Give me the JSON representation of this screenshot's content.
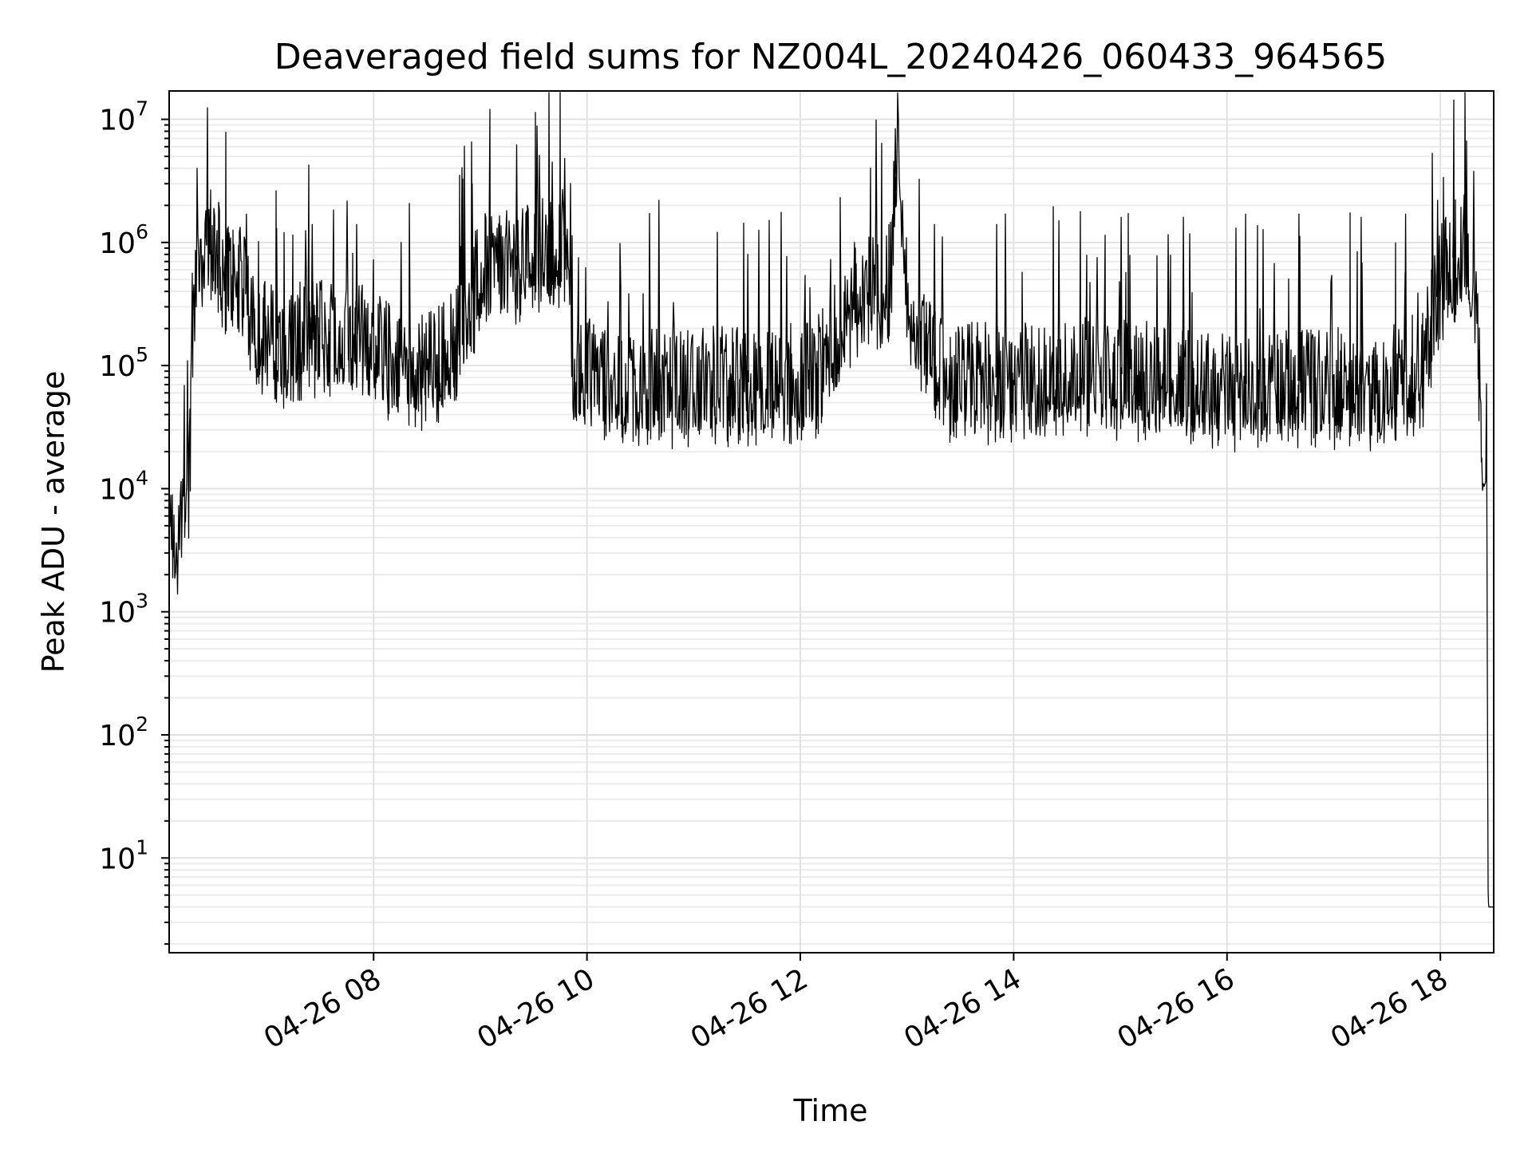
{
  "chart_data": {
    "type": "line",
    "title": "Deaveraged field sums for NZ004L_20240426_060433_964565",
    "xlabel": "Time",
    "ylabel": "Peak ADU - average",
    "yscale": "log",
    "xlim": [
      "2024-04-26 06:05",
      "2024-04-26 18:30"
    ],
    "ylim": [
      1.7,
      17000000
    ],
    "x_ticks": [
      "04-26 08",
      "04-26 10",
      "04-26 12",
      "04-26 14",
      "04-26 16",
      "04-26 18"
    ],
    "y_ticks": [
      {
        "base": "10",
        "exp": "1"
      },
      {
        "base": "10",
        "exp": "2"
      },
      {
        "base": "10",
        "exp": "3"
      },
      {
        "base": "10",
        "exp": "4"
      },
      {
        "base": "10",
        "exp": "5"
      },
      {
        "base": "10",
        "exp": "6"
      },
      {
        "base": "10",
        "exp": "7"
      }
    ],
    "grid": true,
    "series": [
      {
        "color": "#000000",
        "points": [
          [
            "2024-04-26 06:05",
            3500
          ],
          [
            "2024-04-26 06:07",
            6000
          ],
          [
            "2024-04-26 06:09",
            2000
          ],
          [
            "2024-04-26 06:12",
            8000
          ],
          [
            "2024-04-26 06:14",
            12000
          ],
          [
            "2024-04-26 06:16",
            9000
          ],
          [
            "2024-04-26 06:18",
            200000
          ],
          [
            "2024-04-26 06:20",
            500000
          ],
          [
            "2024-04-26 06:24",
            900000
          ],
          [
            "2024-04-26 06:30",
            1200000
          ],
          [
            "2024-04-26 06:36",
            600000
          ],
          [
            "2024-04-26 06:45",
            500000
          ],
          [
            "2024-04-26 06:55",
            200000
          ],
          [
            "2024-04-26 07:10",
            150000
          ],
          [
            "2024-04-26 07:30",
            200000
          ],
          [
            "2024-04-26 07:50",
            180000
          ],
          [
            "2024-04-26 08:10",
            120000
          ],
          [
            "2024-04-26 08:30",
            100000
          ],
          [
            "2024-04-26 08:45",
            150000
          ],
          [
            "2024-04-26 08:55",
            400000
          ],
          [
            "2024-04-26 09:05",
            800000
          ],
          [
            "2024-04-26 09:20",
            600000
          ],
          [
            "2024-04-26 09:30",
            1000000
          ],
          [
            "2024-04-26 09:40",
            800000
          ],
          [
            "2024-04-26 09:48",
            1200000
          ],
          [
            "2024-04-26 09:52",
            100000
          ],
          [
            "2024-04-26 10:10",
            80000
          ],
          [
            "2024-04-26 10:40",
            70000
          ],
          [
            "2024-04-26 11:10",
            80000
          ],
          [
            "2024-04-26 11:40",
            70000
          ],
          [
            "2024-04-26 12:10",
            90000
          ],
          [
            "2024-04-26 12:30",
            400000
          ],
          [
            "2024-04-26 12:50",
            500000
          ],
          [
            "2024-04-26 12:55",
            8000000
          ],
          [
            "2024-04-26 13:00",
            400000
          ],
          [
            "2024-04-26 13:20",
            80000
          ],
          [
            "2024-04-26 14:00",
            80000
          ],
          [
            "2024-04-26 14:40",
            90000
          ],
          [
            "2024-04-26 15:20",
            80000
          ],
          [
            "2024-04-26 16:00",
            70000
          ],
          [
            "2024-04-26 16:40",
            75000
          ],
          [
            "2024-04-26 17:20",
            70000
          ],
          [
            "2024-04-26 17:50",
            100000
          ],
          [
            "2024-04-26 18:00",
            500000
          ],
          [
            "2024-04-26 18:10",
            900000
          ],
          [
            "2024-04-26 18:15",
            950000
          ],
          [
            "2024-04-26 18:20",
            400000
          ],
          [
            "2024-04-26 18:24",
            12000
          ],
          [
            "2024-04-26 18:26",
            5000
          ],
          [
            "2024-04-26 18:27",
            4
          ],
          [
            "2024-04-26 18:30",
            4
          ]
        ],
        "spikes": [
          [
            "2024-04-26 06:25",
            1600000
          ],
          [
            "2024-04-26 06:48",
            1700000
          ],
          [
            "2024-04-26 07:05",
            1300000
          ],
          [
            "2024-04-26 07:25",
            1400000
          ],
          [
            "2024-04-26 07:50",
            1400000
          ],
          [
            "2024-04-26 08:15",
            1000000
          ],
          [
            "2024-04-26 08:55",
            3000000
          ],
          [
            "2024-04-26 09:20",
            6200000
          ],
          [
            "2024-04-26 09:40",
            4500000
          ],
          [
            "2024-04-26 09:47",
            4800000
          ],
          [
            "2024-04-26 10:40",
            2200000
          ],
          [
            "2024-04-26 11:30",
            800000
          ],
          [
            "2024-04-26 12:30",
            1000000
          ],
          [
            "2024-04-26 12:53",
            8400000
          ],
          [
            "2024-04-26 13:15",
            1400000
          ],
          [
            "2024-04-26 13:50",
            1400000
          ],
          [
            "2024-04-26 14:25",
            1500000
          ],
          [
            "2024-04-26 15:00",
            1600000
          ],
          [
            "2024-04-26 15:35",
            1600000
          ],
          [
            "2024-04-26 16:10",
            1700000
          ],
          [
            "2024-04-26 16:40",
            1700000
          ],
          [
            "2024-04-26 17:15",
            1600000
          ],
          [
            "2024-04-26 17:40",
            1700000
          ],
          [
            "2024-04-26 17:58",
            2200000
          ],
          [
            "2024-04-26 18:07",
            2000000
          ]
        ]
      }
    ]
  }
}
